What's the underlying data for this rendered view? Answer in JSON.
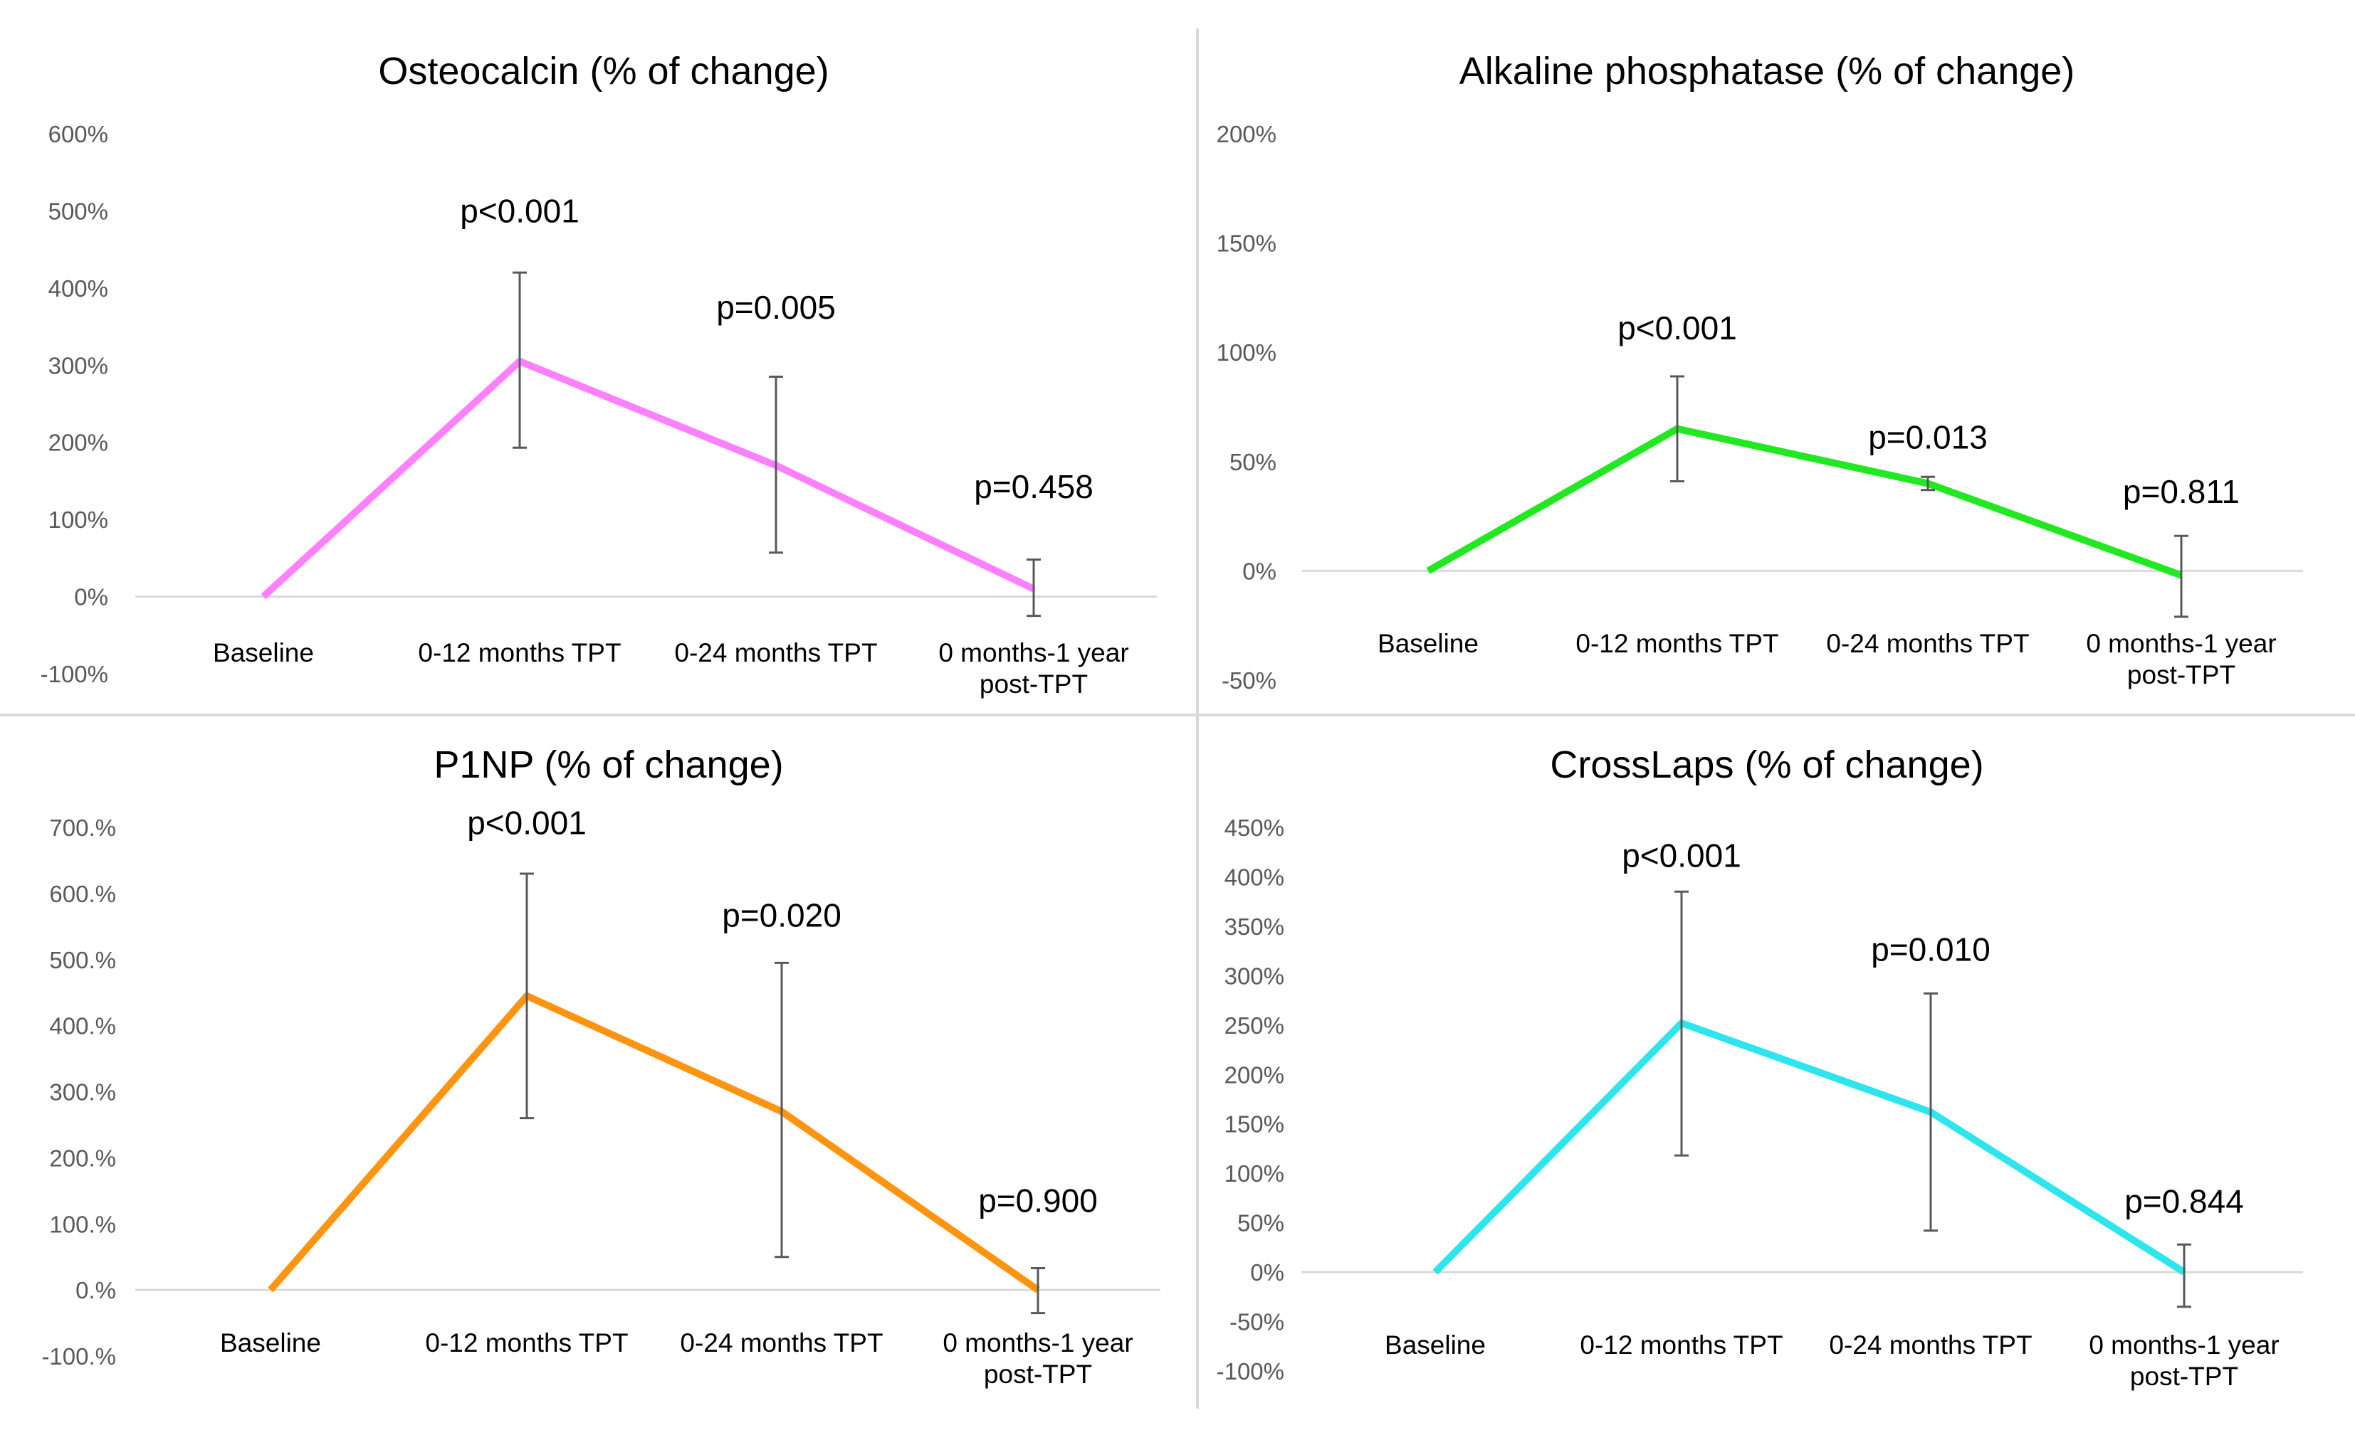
{
  "figure": {
    "divider_color": "#d9d9d9",
    "axis_color": "#d9d9d9",
    "errorbar_color": "#595959",
    "tick_color": "#595959",
    "label_color": "#000000"
  },
  "chart_data": [
    {
      "type": "line",
      "title": "Osteocalcin (% of change)",
      "categories": [
        "Baseline",
        "0-12 months TPT",
        "0-24 months TPT",
        "0 months-1 year|post-TPT"
      ],
      "series": [
        {
          "name": "Osteocalcin",
          "color": "#ff80ff",
          "values": [
            0,
            305,
            170,
            10
          ]
        }
      ],
      "error_high": [
        null,
        420,
        285,
        48
      ],
      "error_low": [
        null,
        193,
        57,
        -25
      ],
      "p_values": [
        "",
        "p<0.001",
        "p=0.005",
        "p=0.458"
      ],
      "p_value_y": [
        null,
        485,
        360,
        128
      ],
      "ylim": [
        -100,
        600
      ],
      "yticks": [
        -100,
        0,
        100,
        200,
        300,
        400,
        500,
        600
      ],
      "ytick_labels": [
        "-100%",
        "0%",
        "100%",
        "200%",
        "300%",
        "400%",
        "500%",
        "600%"
      ],
      "xlabel": "",
      "ylabel": ""
    },
    {
      "type": "line",
      "title": "Alkaline phosphatase (% of change)",
      "categories": [
        "Baseline",
        "0-12 months TPT",
        "0-24 months TPT",
        "0 months-1 year|post-TPT"
      ],
      "series": [
        {
          "name": "Alkaline phosphatase",
          "color": "#22e822",
          "values": [
            0,
            65,
            40,
            -2
          ]
        }
      ],
      "error_high": [
        null,
        89,
        43,
        16
      ],
      "error_low": [
        null,
        41,
        37,
        -21
      ],
      "p_values": [
        "",
        "p<0.001",
        "p=0.013",
        "p=0.811"
      ],
      "p_value_y": [
        null,
        106,
        56,
        31
      ],
      "ylim": [
        -50,
        200
      ],
      "yticks": [
        -50,
        0,
        50,
        100,
        150,
        200
      ],
      "ytick_labels": [
        "-50%",
        "0%",
        "50%",
        "100%",
        "150%",
        "200%"
      ],
      "xlabel": "",
      "ylabel": ""
    },
    {
      "type": "line",
      "title": "P1NP (% of change)",
      "categories": [
        "Baseline",
        "0-12 months TPT",
        "0-24 months TPT",
        "0 months-1 year|post-TPT"
      ],
      "series": [
        {
          "name": "P1NP",
          "color": "#ff9410",
          "values": [
            0,
            445,
            270,
            0
          ]
        }
      ],
      "error_high": [
        null,
        630,
        495,
        33
      ],
      "error_low": [
        null,
        260,
        50,
        -35
      ],
      "p_values": [
        "",
        "p<0.001",
        "p=0.020",
        "p=0.900"
      ],
      "p_value_y": [
        null,
        690,
        550,
        118
      ],
      "ylim": [
        -100,
        700
      ],
      "yticks": [
        -100,
        0,
        100,
        200,
        300,
        400,
        500,
        600,
        700
      ],
      "ytick_labels": [
        "-100.%",
        "0.%",
        "100.%",
        "200.%",
        "300.%",
        "400.%",
        "500.%",
        "600.%",
        "700.%"
      ],
      "xlabel": "",
      "ylabel": ""
    },
    {
      "type": "line",
      "title": "CrossLaps (% of change)",
      "categories": [
        "Baseline",
        "0-12 months TPT",
        "0-24 months TPT",
        "0 months-1 year|post-TPT"
      ],
      "series": [
        {
          "name": "CrossLaps",
          "color": "#2ee5ee",
          "values": [
            0,
            252,
            162,
            0
          ]
        }
      ],
      "error_high": [
        null,
        385,
        282,
        28
      ],
      "error_low": [
        null,
        118,
        42,
        -35
      ],
      "p_values": [
        "",
        "p<0.001",
        "p=0.010",
        "p=0.844"
      ],
      "p_value_y": [
        null,
        410,
        315,
        60
      ],
      "ylim": [
        -100,
        450
      ],
      "yticks": [
        -100,
        -50,
        0,
        50,
        100,
        150,
        200,
        250,
        300,
        350,
        400,
        450
      ],
      "ytick_labels": [
        "-100%",
        "-50%",
        "0%",
        "50%",
        "100%",
        "150%",
        "200%",
        "250%",
        "300%",
        "350%",
        "400%",
        "450%"
      ],
      "xlabel": "",
      "ylabel": ""
    }
  ]
}
